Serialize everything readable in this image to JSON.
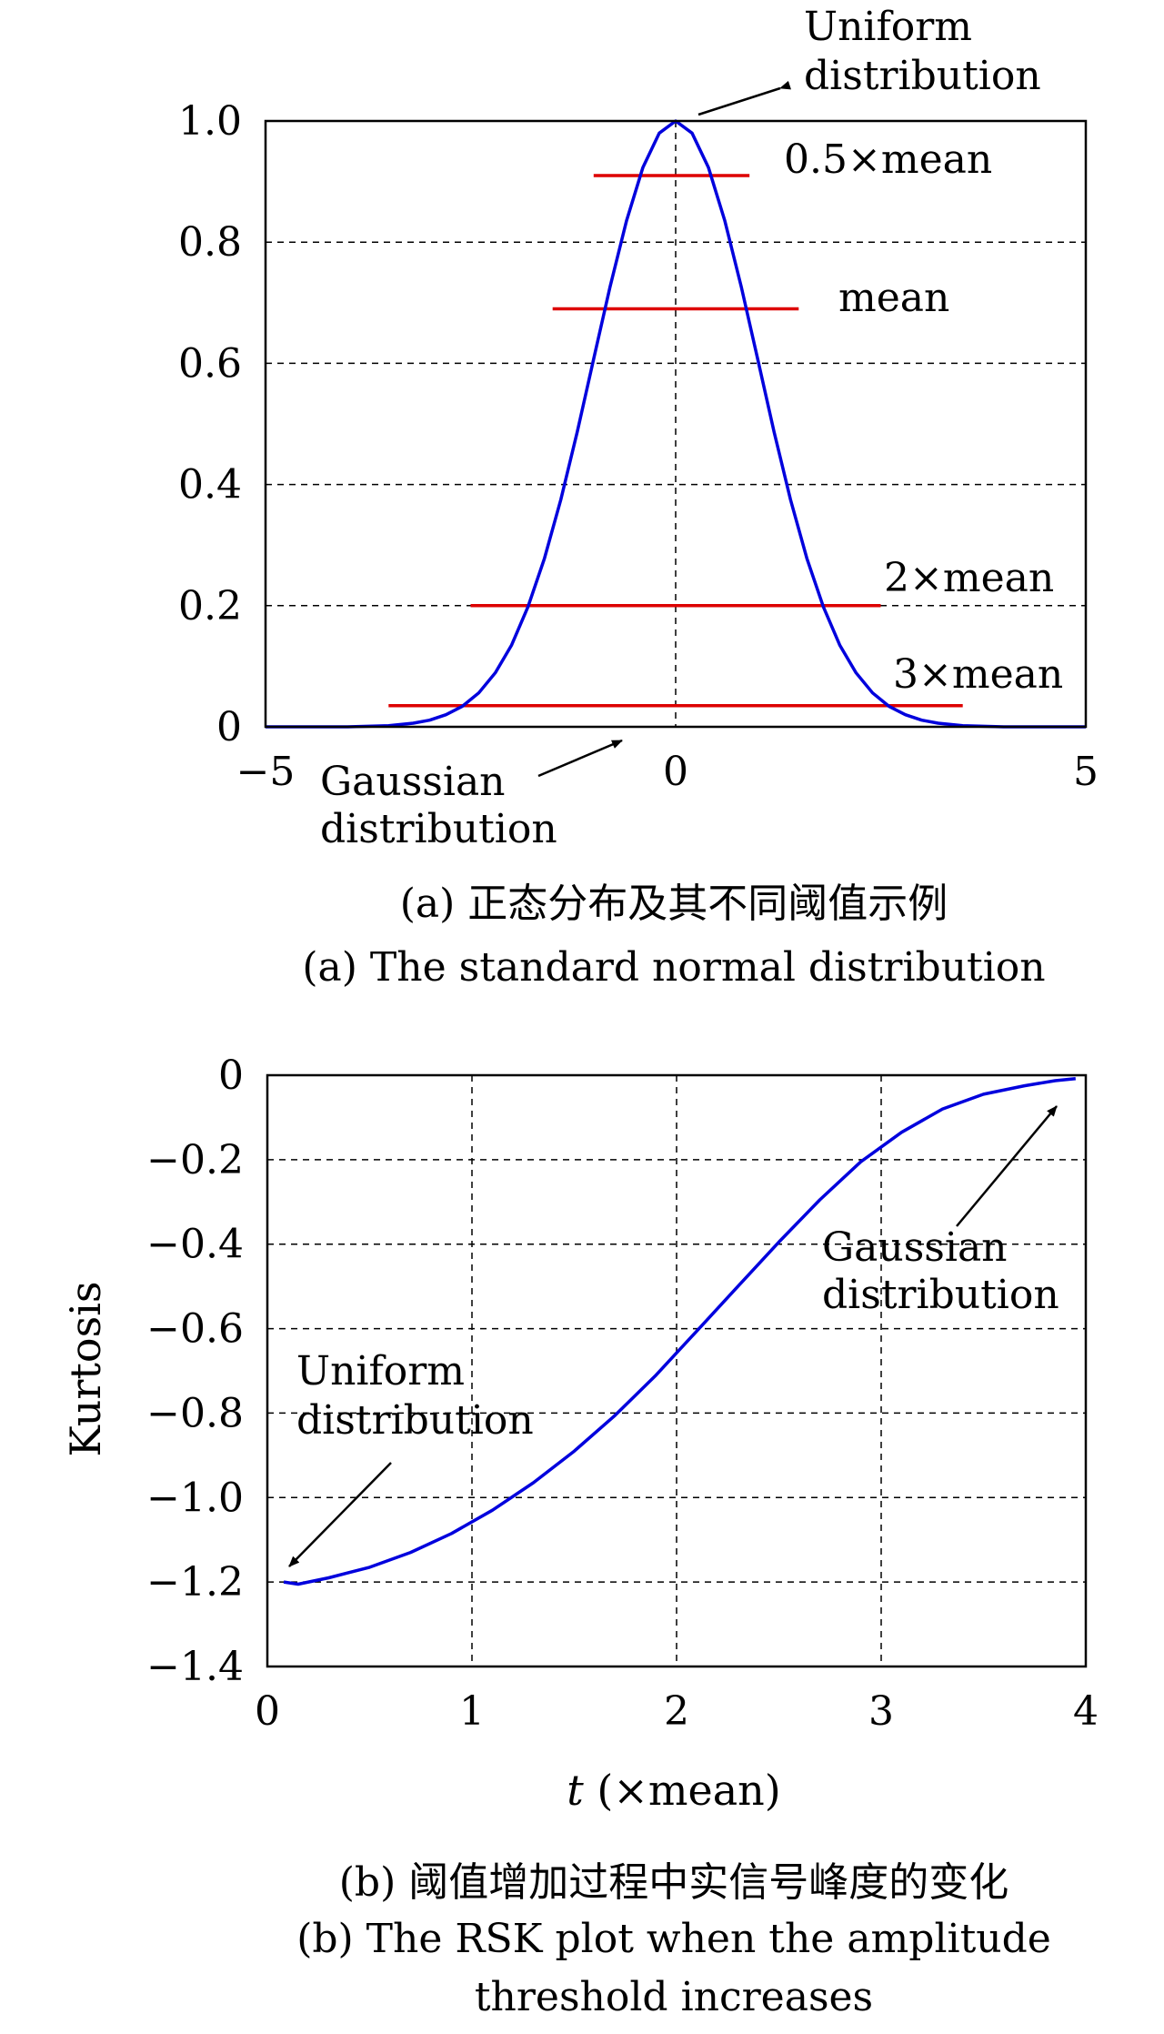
{
  "chart_data": [
    {
      "type": "line",
      "xlim": [
        -5,
        5
      ],
      "ylim": [
        0,
        1.0
      ],
      "x_ticks": [
        -5,
        0,
        5
      ],
      "x_tick_labels": [
        "−5",
        "0",
        "5"
      ],
      "y_ticks": [
        0,
        0.2,
        0.4,
        0.6,
        0.8,
        1.0
      ],
      "y_tick_labels": [
        "0",
        "0.2",
        "0.4",
        "0.6",
        "0.8",
        "1.0"
      ],
      "grid": true,
      "series": [
        {
          "color": "#0000dd",
          "x": [
            -5,
            -4,
            -3.5,
            -3.2,
            -3,
            -2.8,
            -2.6,
            -2.4,
            -2.2,
            -2,
            -1.8,
            -1.6,
            -1.4,
            -1.2,
            -1,
            -0.8,
            -0.6,
            -0.4,
            -0.2,
            0,
            0.2,
            0.4,
            0.6,
            0.8,
            1,
            1.2,
            1.4,
            1.6,
            1.8,
            2,
            2.2,
            2.4,
            2.6,
            2.8,
            3,
            3.2,
            3.5,
            4,
            5
          ],
          "y": [
            0,
            0,
            0.002,
            0.006,
            0.011,
            0.02,
            0.034,
            0.056,
            0.089,
            0.135,
            0.198,
            0.278,
            0.375,
            0.487,
            0.607,
            0.726,
            0.835,
            0.923,
            0.98,
            1.0,
            0.98,
            0.923,
            0.835,
            0.726,
            0.607,
            0.487,
            0.375,
            0.278,
            0.198,
            0.135,
            0.089,
            0.056,
            0.034,
            0.02,
            0.011,
            0.006,
            0.002,
            0,
            0
          ]
        }
      ],
      "threshold_lines": [
        {
          "label": "0.5×mean",
          "x0": -1.0,
          "x1": 0.9,
          "y": 0.91
        },
        {
          "label": "mean",
          "x0": -1.5,
          "x1": 1.5,
          "y": 0.69
        },
        {
          "label": "2×mean",
          "x0": -2.5,
          "x1": 2.5,
          "y": 0.2
        },
        {
          "label": "3×mean",
          "x0": -3.5,
          "x1": 3.5,
          "y": 0.035
        }
      ],
      "threshold_color": "#dd0000",
      "annotations": [
        {
          "line1": "Uniform",
          "line2": "distribution"
        },
        {
          "line1": "Gaussian",
          "line2": "distribution"
        }
      ],
      "caption_cn": "(a) 正态分布及其不同阈值示例",
      "caption_en": "(a) The standard normal distribution"
    },
    {
      "type": "line",
      "xlim": [
        0,
        4
      ],
      "ylim": [
        -1.4,
        0
      ],
      "x_ticks": [
        0,
        1,
        2,
        3,
        4
      ],
      "x_tick_labels": [
        "0",
        "1",
        "2",
        "3",
        "4"
      ],
      "y_ticks": [
        0,
        -0.2,
        -0.4,
        -0.6,
        -0.8,
        -1.0,
        -1.2,
        -1.4
      ],
      "y_tick_labels": [
        "0",
        "−0.2",
        "−0.4",
        "−0.6",
        "−0.8",
        "−1.0",
        "−1.2",
        "−1.4"
      ],
      "grid": true,
      "xlabel_italic": "t",
      "xlabel_rest": " (×mean)",
      "ylabel": "Kurtosis",
      "series": [
        {
          "color": "#0000dd",
          "x": [
            0.08,
            0.15,
            0.3,
            0.5,
            0.7,
            0.9,
            1.1,
            1.3,
            1.5,
            1.7,
            1.9,
            2.1,
            2.3,
            2.5,
            2.7,
            2.9,
            3.1,
            3.3,
            3.5,
            3.7,
            3.85,
            3.95
          ],
          "y": [
            -1.2,
            -1.205,
            -1.19,
            -1.165,
            -1.13,
            -1.085,
            -1.03,
            -0.965,
            -0.89,
            -0.805,
            -0.71,
            -0.605,
            -0.5,
            -0.395,
            -0.295,
            -0.205,
            -0.135,
            -0.08,
            -0.045,
            -0.025,
            -0.013,
            -0.008
          ]
        }
      ],
      "annotations": [
        {
          "line1": "Uniform",
          "line2": "distribution"
        },
        {
          "line1": "Gaussian",
          "line2": "distribution"
        }
      ],
      "caption_cn": "(b) 阈值增加过程中实信号峰度的变化",
      "caption_en_1": "(b) The RSK plot when the amplitude",
      "caption_en_2": "threshold increases"
    }
  ]
}
